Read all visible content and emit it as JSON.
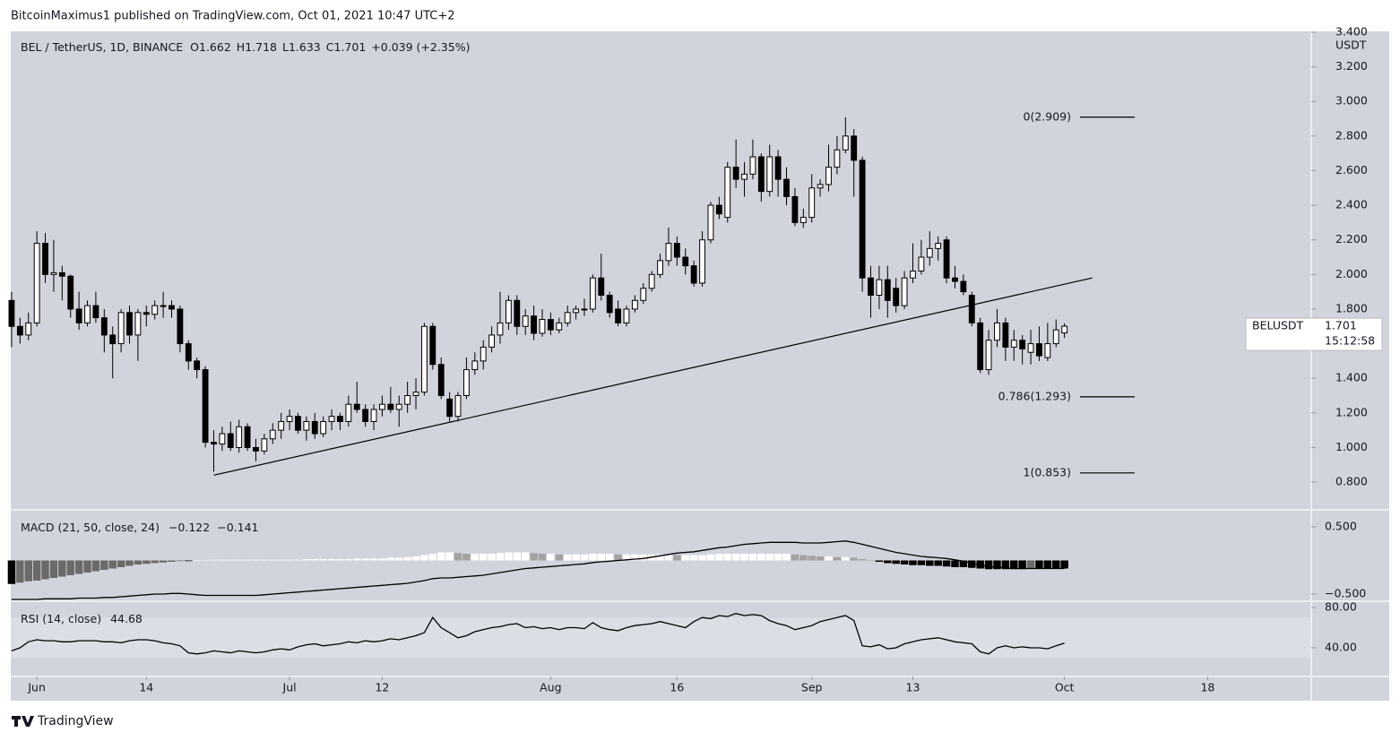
{
  "header": {
    "attribution": "BitcoinMaximus1 published on TradingView.com, Oct 01, 2021 10:47 UTC+2",
    "brand": "TradingView"
  },
  "chart_data": {
    "type": "candlestick",
    "title": "BEL / TetherUS, 1D, BINANCE",
    "legend": {
      "open_label": "O",
      "high_label": "H",
      "low_label": "L",
      "close_label": "C",
      "change": "+0.039 (+2.35%)"
    },
    "up_color": "#ffffff",
    "down_color": "#000000",
    "border_color": "#000000",
    "x": [
      -3,
      -2,
      -1,
      0,
      1,
      2,
      3,
      4,
      5,
      6,
      7,
      8,
      9,
      10,
      11,
      12,
      13,
      14,
      15,
      16,
      17,
      18,
      19,
      20,
      21,
      22,
      23,
      24,
      25,
      26,
      27,
      28,
      29,
      30,
      31,
      32,
      33,
      34,
      35,
      36,
      37,
      38,
      39,
      40,
      41,
      42,
      43,
      44,
      45,
      46,
      47,
      48,
      49,
      50,
      51,
      52,
      53,
      54,
      55,
      56,
      57,
      58,
      59,
      60,
      61,
      62,
      63,
      64,
      65,
      66,
      67,
      68,
      69,
      70,
      71,
      72,
      73,
      74,
      75,
      76,
      77,
      78,
      79,
      80,
      81,
      82,
      83,
      84,
      85,
      86,
      87,
      88,
      89,
      90,
      91,
      92,
      93,
      94,
      95,
      96,
      97,
      98,
      99,
      100,
      101,
      102,
      103,
      104,
      105,
      106,
      107,
      108,
      109,
      110,
      111,
      112,
      113,
      114,
      115,
      116,
      117,
      118,
      119,
      120,
      121,
      122
    ],
    "candles": [
      [
        1.85,
        1.9,
        1.58,
        1.7
      ],
      [
        1.7,
        1.75,
        1.6,
        1.65
      ],
      [
        1.65,
        1.78,
        1.62,
        1.72
      ],
      [
        1.72,
        2.25,
        1.7,
        2.18
      ],
      [
        2.18,
        2.24,
        1.95,
        2.0
      ],
      [
        2.0,
        2.2,
        1.9,
        2.01
      ],
      [
        2.01,
        2.05,
        1.85,
        1.99
      ],
      [
        1.99,
        2.0,
        1.75,
        1.8
      ],
      [
        1.8,
        1.9,
        1.68,
        1.72
      ],
      [
        1.72,
        1.85,
        1.7,
        1.82
      ],
      [
        1.82,
        1.9,
        1.72,
        1.75
      ],
      [
        1.75,
        1.8,
        1.55,
        1.65
      ],
      [
        1.65,
        1.7,
        1.4,
        1.6
      ],
      [
        1.6,
        1.8,
        1.55,
        1.78
      ],
      [
        1.78,
        1.82,
        1.6,
        1.65
      ],
      [
        1.65,
        1.8,
        1.5,
        1.78
      ],
      [
        1.78,
        1.82,
        1.7,
        1.77
      ],
      [
        1.77,
        1.85,
        1.74,
        1.82
      ],
      [
        1.82,
        1.9,
        1.75,
        1.82
      ],
      [
        1.82,
        1.85,
        1.75,
        1.8
      ],
      [
        1.8,
        1.82,
        1.55,
        1.6
      ],
      [
        1.6,
        1.62,
        1.45,
        1.5
      ],
      [
        1.5,
        1.52,
        1.4,
        1.45
      ],
      [
        1.45,
        1.47,
        1.0,
        1.03
      ],
      [
        1.03,
        1.1,
        0.86,
        1.02
      ],
      [
        1.02,
        1.12,
        0.98,
        1.08
      ],
      [
        1.08,
        1.15,
        0.98,
        1.0
      ],
      [
        1.0,
        1.16,
        0.97,
        1.12
      ],
      [
        1.12,
        1.14,
        0.98,
        1.0
      ],
      [
        1.0,
        1.05,
        0.92,
        0.98
      ],
      [
        0.98,
        1.08,
        0.96,
        1.05
      ],
      [
        1.05,
        1.14,
        1.02,
        1.1
      ],
      [
        1.1,
        1.2,
        1.05,
        1.15
      ],
      [
        1.15,
        1.22,
        1.1,
        1.18
      ],
      [
        1.18,
        1.2,
        1.08,
        1.1
      ],
      [
        1.1,
        1.18,
        1.04,
        1.15
      ],
      [
        1.15,
        1.2,
        1.05,
        1.08
      ],
      [
        1.08,
        1.18,
        1.06,
        1.15
      ],
      [
        1.15,
        1.22,
        1.1,
        1.18
      ],
      [
        1.18,
        1.2,
        1.1,
        1.15
      ],
      [
        1.15,
        1.3,
        1.12,
        1.25
      ],
      [
        1.25,
        1.38,
        1.2,
        1.22
      ],
      [
        1.22,
        1.25,
        1.12,
        1.15
      ],
      [
        1.15,
        1.25,
        1.1,
        1.22
      ],
      [
        1.22,
        1.3,
        1.18,
        1.25
      ],
      [
        1.25,
        1.35,
        1.2,
        1.22
      ],
      [
        1.22,
        1.3,
        1.12,
        1.25
      ],
      [
        1.25,
        1.38,
        1.2,
        1.3
      ],
      [
        1.3,
        1.4,
        1.22,
        1.32
      ],
      [
        1.32,
        1.72,
        1.3,
        1.7
      ],
      [
        1.7,
        1.72,
        1.45,
        1.48
      ],
      [
        1.48,
        1.52,
        1.28,
        1.3
      ],
      [
        1.28,
        1.32,
        1.15,
        1.18
      ],
      [
        1.18,
        1.32,
        1.15,
        1.3
      ],
      [
        1.3,
        1.52,
        1.28,
        1.45
      ],
      [
        1.45,
        1.55,
        1.42,
        1.5
      ],
      [
        1.5,
        1.62,
        1.45,
        1.58
      ],
      [
        1.58,
        1.7,
        1.55,
        1.65
      ],
      [
        1.65,
        1.9,
        1.6,
        1.72
      ],
      [
        1.72,
        1.88,
        1.68,
        1.85
      ],
      [
        1.85,
        1.88,
        1.65,
        1.7
      ],
      [
        1.7,
        1.8,
        1.65,
        1.76
      ],
      [
        1.76,
        1.82,
        1.62,
        1.66
      ],
      [
        1.66,
        1.8,
        1.64,
        1.74
      ],
      [
        1.74,
        1.78,
        1.65,
        1.68
      ],
      [
        1.68,
        1.75,
        1.66,
        1.72
      ],
      [
        1.72,
        1.82,
        1.7,
        1.78
      ],
      [
        1.78,
        1.82,
        1.74,
        1.8
      ],
      [
        1.8,
        1.86,
        1.76,
        1.8
      ],
      [
        1.8,
        2.0,
        1.78,
        1.98
      ],
      [
        1.98,
        2.12,
        1.85,
        1.88
      ],
      [
        1.88,
        1.9,
        1.75,
        1.78
      ],
      [
        1.8,
        1.85,
        1.7,
        1.72
      ],
      [
        1.72,
        1.82,
        1.7,
        1.8
      ],
      [
        1.8,
        1.88,
        1.78,
        1.85
      ],
      [
        1.85,
        1.95,
        1.83,
        1.92
      ],
      [
        1.92,
        2.02,
        1.9,
        2.0
      ],
      [
        2.0,
        2.12,
        1.98,
        2.08
      ],
      [
        2.08,
        2.27,
        2.05,
        2.18
      ],
      [
        2.18,
        2.22,
        2.05,
        2.1
      ],
      [
        2.1,
        2.15,
        2.0,
        2.05
      ],
      [
        2.05,
        2.08,
        1.93,
        1.95
      ],
      [
        1.95,
        2.25,
        1.93,
        2.2
      ],
      [
        2.2,
        2.42,
        2.18,
        2.4
      ],
      [
        2.4,
        2.45,
        2.32,
        2.35
      ],
      [
        2.33,
        2.65,
        2.3,
        2.62
      ],
      [
        2.62,
        2.78,
        2.5,
        2.55
      ],
      [
        2.55,
        2.65,
        2.45,
        2.58
      ],
      [
        2.58,
        2.78,
        2.55,
        2.68
      ],
      [
        2.68,
        2.7,
        2.42,
        2.48
      ],
      [
        2.48,
        2.75,
        2.45,
        2.68
      ],
      [
        2.68,
        2.72,
        2.45,
        2.55
      ],
      [
        2.55,
        2.62,
        2.4,
        2.45
      ],
      [
        2.45,
        2.5,
        2.28,
        2.3
      ],
      [
        2.3,
        2.38,
        2.27,
        2.33
      ],
      [
        2.33,
        2.58,
        2.3,
        2.5
      ],
      [
        2.5,
        2.55,
        2.45,
        2.52
      ],
      [
        2.52,
        2.75,
        2.48,
        2.62
      ],
      [
        2.62,
        2.8,
        2.58,
        2.72
      ],
      [
        2.72,
        2.909,
        2.7,
        2.8
      ],
      [
        2.8,
        2.84,
        2.45,
        2.66
      ],
      [
        2.66,
        2.68,
        1.9,
        1.98
      ],
      [
        1.98,
        2.05,
        1.75,
        1.88
      ],
      [
        1.88,
        2.05,
        1.8,
        1.97
      ],
      [
        1.97,
        2.05,
        1.75,
        1.85
      ],
      [
        1.92,
        1.98,
        1.78,
        1.82
      ],
      [
        1.82,
        2.02,
        1.8,
        1.98
      ],
      [
        1.98,
        2.18,
        1.95,
        2.02
      ],
      [
        2.02,
        2.2,
        2.0,
        2.1
      ],
      [
        2.1,
        2.25,
        2.05,
        2.15
      ],
      [
        2.15,
        2.22,
        2.08,
        2.18
      ],
      [
        2.2,
        2.22,
        1.95,
        1.98
      ],
      [
        1.98,
        2.05,
        1.92,
        1.96
      ],
      [
        1.96,
        2.0,
        1.88,
        1.9
      ],
      [
        1.88,
        1.9,
        1.7,
        1.72
      ],
      [
        1.72,
        1.75,
        1.43,
        1.45
      ],
      [
        1.45,
        1.68,
        1.42,
        1.62
      ],
      [
        1.62,
        1.8,
        1.58,
        1.72
      ],
      [
        1.72,
        1.75,
        1.5,
        1.58
      ],
      [
        1.58,
        1.68,
        1.5,
        1.62
      ],
      [
        1.62,
        1.65,
        1.48,
        1.57
      ],
      [
        1.55,
        1.68,
        1.48,
        1.6
      ],
      [
        1.6,
        1.7,
        1.5,
        1.53
      ],
      [
        1.52,
        1.72,
        1.5,
        1.6
      ],
      [
        1.6,
        1.74,
        1.58,
        1.68
      ],
      [
        1.662,
        1.718,
        1.633,
        1.701
      ]
    ],
    "xlim": [
      -3.1,
      151.3
    ],
    "xticks": [
      {
        "value": 0,
        "label": "Jun"
      },
      {
        "value": 13,
        "label": "14"
      },
      {
        "value": 30,
        "label": "Jul"
      },
      {
        "value": 41,
        "label": "12"
      },
      {
        "value": 61,
        "label": "Aug"
      },
      {
        "value": 76,
        "label": "16"
      },
      {
        "value": 92,
        "label": "Sep"
      },
      {
        "value": 104,
        "label": "13"
      },
      {
        "value": 122,
        "label": "Oct"
      },
      {
        "value": 139,
        "label": "18"
      }
    ],
    "ylim": [
      0.645,
      3.405
    ],
    "yticks": [
      {
        "value": 3.4,
        "label": "3.400"
      },
      {
        "value": 3.2,
        "label": "3.200"
      },
      {
        "value": 3,
        "label": "3.000"
      },
      {
        "value": 2.8,
        "label": "2.800"
      },
      {
        "value": 2.6,
        "label": "2.600"
      },
      {
        "value": 2.4,
        "label": "2.400"
      },
      {
        "value": 2.2,
        "label": "2.200"
      },
      {
        "value": 2,
        "label": "2.000"
      },
      {
        "value": 1.8,
        "label": "1.800"
      },
      {
        "value": 1.6,
        "label": "1.600"
      },
      {
        "value": 1.4,
        "label": "1.400"
      },
      {
        "value": 1.2,
        "label": "1.200"
      },
      {
        "value": 1,
        "label": "1.000"
      },
      {
        "value": 0.8,
        "label": "0.800"
      }
    ],
    "y_unit": "USDT",
    "trendline": {
      "x": [
        21,
        125.3
      ],
      "y": [
        0.84,
        1.98
      ]
    },
    "fib_levels": [
      {
        "label": "0(2.909)",
        "value": 2.909
      },
      {
        "label": "0.786(1.293)",
        "value": 1.293
      },
      {
        "label": "1(0.853)",
        "value": 0.853
      }
    ],
    "last_price": {
      "symbol": "BELUSDT",
      "price": "1.701",
      "countdown": "15:12:58"
    },
    "macd": {
      "title": "MACD (21, 50, close, 24)",
      "readings": [
        "−0.122",
        "−0.141"
      ],
      "ylim": [
        -0.6,
        0.74
      ],
      "yticks": [
        {
          "value": 0.5,
          "label": "0.500"
        },
        {
          "value": -0.5,
          "label": "−0.500"
        }
      ],
      "histogram_colors": {
        "up_rising": "#ffffff",
        "up_falling": "#a3a3a3",
        "down_falling": "#000000",
        "down_rising": "#6a6a6a"
      },
      "line_color": "#000000",
      "histogram": [
        -0.35,
        -0.33,
        -0.31,
        -0.3,
        -0.28,
        -0.26,
        -0.24,
        -0.22,
        -0.2,
        -0.18,
        -0.16,
        -0.14,
        -0.12,
        -0.1,
        -0.08,
        -0.06,
        -0.05,
        -0.04,
        -0.03,
        -0.02,
        -0.01,
        -0.01,
        0,
        0,
        0.01,
        0.01,
        0.01,
        0.01,
        0.01,
        0.01,
        0.01,
        0.01,
        0.01,
        0.01,
        0.01,
        0.02,
        0.02,
        0.02,
        0.02,
        0.02,
        0.02,
        0.03,
        0.03,
        0.03,
        0.03,
        0.04,
        0.04,
        0.05,
        0.06,
        0.08,
        0.1,
        0.12,
        0.12,
        0.11,
        0.1,
        0.1,
        0.1,
        0.1,
        0.11,
        0.12,
        0.12,
        0.12,
        0.11,
        0.1,
        0.1,
        0.09,
        0.09,
        0.09,
        0.09,
        0.1,
        0.1,
        0.1,
        0.09,
        0.09,
        0.09,
        0.09,
        0.09,
        0.09,
        0.09,
        0.08,
        0.08,
        0.08,
        0.08,
        0.09,
        0.1,
        0.1,
        0.1,
        0.1,
        0.1,
        0.1,
        0.1,
        0.1,
        0.1,
        0.09,
        0.08,
        0.07,
        0.06,
        0.06,
        0.05,
        0.05,
        0.04,
        0.02,
        0,
        -0.02,
        -0.04,
        -0.05,
        -0.06,
        -0.07,
        -0.07,
        -0.08,
        -0.08,
        -0.09,
        -0.1,
        -0.1,
        -0.11,
        -0.12,
        -0.13,
        -0.13,
        -0.13,
        -0.13,
        -0.13,
        -0.12,
        -0.12,
        -0.12,
        -0.12,
        -0.12
      ],
      "line": [
        -0.58,
        -0.58,
        -0.58,
        -0.58,
        -0.57,
        -0.57,
        -0.57,
        -0.57,
        -0.56,
        -0.56,
        -0.56,
        -0.55,
        -0.55,
        -0.54,
        -0.53,
        -0.52,
        -0.51,
        -0.5,
        -0.5,
        -0.49,
        -0.49,
        -0.5,
        -0.51,
        -0.52,
        -0.52,
        -0.52,
        -0.52,
        -0.52,
        -0.52,
        -0.52,
        -0.51,
        -0.5,
        -0.49,
        -0.48,
        -0.47,
        -0.46,
        -0.45,
        -0.44,
        -0.43,
        -0.42,
        -0.41,
        -0.4,
        -0.39,
        -0.38,
        -0.37,
        -0.36,
        -0.35,
        -0.34,
        -0.32,
        -0.3,
        -0.27,
        -0.26,
        -0.26,
        -0.25,
        -0.24,
        -0.23,
        -0.22,
        -0.2,
        -0.18,
        -0.16,
        -0.14,
        -0.12,
        -0.11,
        -0.1,
        -0.09,
        -0.08,
        -0.07,
        -0.06,
        -0.05,
        -0.03,
        -0.02,
        -0.01,
        0,
        0.01,
        0.02,
        0.03,
        0.05,
        0.07,
        0.09,
        0.11,
        0.12,
        0.13,
        0.15,
        0.17,
        0.19,
        0.2,
        0.22,
        0.24,
        0.25,
        0.26,
        0.27,
        0.27,
        0.27,
        0.27,
        0.26,
        0.26,
        0.26,
        0.27,
        0.28,
        0.29,
        0.27,
        0.24,
        0.21,
        0.18,
        0.15,
        0.12,
        0.1,
        0.08,
        0.06,
        0.05,
        0.04,
        0.03,
        0.01,
        -0.01,
        -0.04,
        -0.07,
        -0.09,
        -0.1,
        -0.11,
        -0.12,
        -0.12,
        -0.12,
        -0.12,
        -0.12,
        -0.12,
        -0.12
      ]
    },
    "rsi": {
      "title": "RSI (14, close)",
      "ylim": [
        11.6,
        85.3
      ],
      "yticks": [
        {
          "value": 80,
          "label": "80.00"
        },
        {
          "value": 40,
          "label": "40.00"
        }
      ],
      "band": [
        30,
        70
      ],
      "line_color": "#000000",
      "values": [
        37,
        40,
        46,
        48,
        47,
        47,
        46,
        46,
        47,
        47,
        47,
        46,
        46,
        45,
        47,
        48,
        48,
        47,
        45,
        44,
        42,
        35,
        34,
        35,
        37,
        36,
        35,
        37,
        36,
        35,
        36,
        38,
        39,
        38,
        41,
        43,
        44,
        42,
        43,
        44,
        46,
        45,
        47,
        46,
        47,
        49,
        48,
        50,
        52,
        55,
        70,
        60,
        55,
        50,
        52,
        56,
        58,
        60,
        61,
        63,
        64,
        60,
        61,
        59,
        60,
        58,
        60,
        60,
        59,
        65,
        60,
        58,
        57,
        60,
        62,
        63,
        64,
        66,
        64,
        62,
        60,
        66,
        70,
        69,
        72,
        71,
        74,
        72,
        73,
        72,
        67,
        64,
        62,
        58,
        60,
        62,
        66,
        68,
        70,
        72,
        67,
        42,
        41,
        43,
        39,
        40,
        44,
        46,
        48,
        49,
        50,
        48,
        46,
        45,
        44,
        36,
        34,
        40,
        42,
        40,
        41,
        40,
        40,
        39,
        42,
        44.68
      ]
    }
  }
}
